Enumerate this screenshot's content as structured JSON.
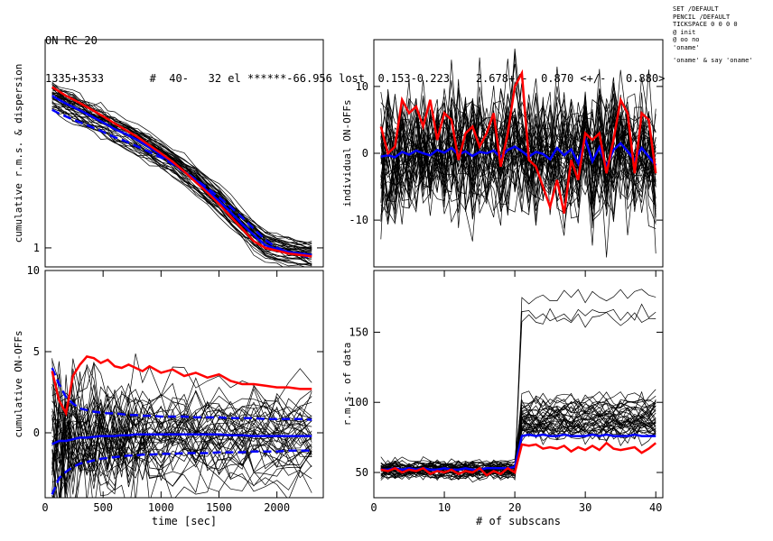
{
  "header": {
    "line1": "ON RC 20",
    "line2": "1335+3533       #  40-   32 el ******-66.956 lost  0.153-0.223    2.678+/-  0.870 <+/-   0.880>"
  },
  "side_notes": [
    "SET /DEFAULT",
    "PENCIL /DEFAULT",
    "TICKSPACE 0 0 0 0",
    "@ init",
    "@ oo no",
    "'oname'",
    "",
    "'oname' & say 'oname'"
  ],
  "colors": {
    "traces": "#000000",
    "highlight": "#ff0000",
    "mean": "#0000ff"
  },
  "chart_data": [
    {
      "id": "rms-dispersion",
      "type": "line",
      "ylabel": "cumulative r.m.s. & dispersion",
      "xlabel": "",
      "yscale": "log",
      "xlim": [
        0,
        2400
      ],
      "ylim": [
        0.87,
        4.6
      ],
      "yticks": [
        {
          "v": 1,
          "label": "1"
        }
      ],
      "x": [
        60,
        120,
        180,
        240,
        300,
        360,
        420,
        480,
        540,
        600,
        700,
        800,
        900,
        1000,
        1100,
        1200,
        1300,
        1400,
        1500,
        1600,
        1700,
        1800,
        1900,
        2000,
        2100,
        2200,
        2300
      ],
      "highlight_values": [
        3.25,
        3.15,
        3.05,
        2.97,
        2.89,
        2.81,
        2.73,
        2.65,
        2.57,
        2.49,
        2.37,
        2.25,
        2.12,
        2.0,
        1.88,
        1.75,
        1.62,
        1.5,
        1.38,
        1.26,
        1.15,
        1.05,
        1.0,
        0.98,
        0.96,
        0.95,
        0.94
      ],
      "mean_values": [
        3.05,
        2.96,
        2.88,
        2.81,
        2.74,
        2.67,
        2.6,
        2.53,
        2.46,
        2.39,
        2.3,
        2.2,
        2.09,
        1.98,
        1.87,
        1.75,
        1.64,
        1.52,
        1.41,
        1.3,
        1.19,
        1.1,
        1.02,
        0.99,
        0.97,
        0.96,
        0.95
      ],
      "dispersion_values": [
        2.75,
        2.68,
        2.62,
        2.56,
        2.51,
        2.46,
        2.41,
        2.36,
        2.3,
        2.25,
        2.18,
        2.1,
        2.02,
        1.94,
        1.85,
        1.75,
        1.65,
        1.55,
        1.45,
        1.35,
        1.25,
        1.15,
        1.06,
        1.0,
        0.97,
        0.95,
        0.93
      ],
      "n_traces": 40
    },
    {
      "id": "individual-on-offs",
      "type": "line",
      "ylabel": "individual ON-OFFs",
      "xlabel": "",
      "xlim": [
        0,
        41
      ],
      "ylim": [
        -17,
        17
      ],
      "yticks": [
        {
          "v": -10,
          "label": "-10"
        },
        {
          "v": 0,
          "label": "0"
        },
        {
          "v": 10,
          "label": "10"
        }
      ],
      "x": [
        1,
        2,
        3,
        4,
        5,
        6,
        7,
        8,
        9,
        10,
        11,
        12,
        13,
        14,
        15,
        16,
        17,
        18,
        19,
        20,
        21,
        22,
        23,
        24,
        25,
        26,
        27,
        28,
        29,
        30,
        31,
        32,
        33,
        34,
        35,
        36,
        37,
        38,
        39,
        40
      ],
      "highlight_values": [
        4,
        0,
        1,
        8,
        6,
        7,
        4,
        8,
        2,
        6,
        5,
        -1,
        3,
        4,
        1,
        3,
        6,
        -2,
        3,
        10,
        12,
        -1,
        -2,
        -5,
        -8,
        -4,
        -9,
        -1,
        -4,
        3,
        2,
        3,
        -3,
        2,
        8,
        6,
        -3,
        6,
        5,
        -3
      ],
      "mean_values": [
        -0.5,
        -0.3,
        -0.6,
        0.2,
        -0.2,
        0.4,
        0.0,
        -0.3,
        0.5,
        0.1,
        0.8,
        -0.2,
        0.3,
        -0.4,
        0.2,
        0.0,
        0.4,
        -0.6,
        0.5,
        1.0,
        0.3,
        -0.5,
        0.2,
        -0.1,
        -0.9,
        0.8,
        -0.3,
        0.6,
        -1.5,
        2.2,
        -1.2,
        0.9,
        -2.0,
        0.5,
        1.5,
        0.3,
        -1.0,
        0.8,
        -0.5,
        -1.8
      ],
      "n_traces": 40
    },
    {
      "id": "cumulative-on-offs",
      "type": "line",
      "ylabel": "cumulative ON-OFFs",
      "xlabel": "time [sec]",
      "xlim": [
        0,
        2400
      ],
      "ylim": [
        -4,
        10
      ],
      "xticks": [
        {
          "v": 0,
          "label": "0"
        },
        {
          "v": 500,
          "label": "500"
        },
        {
          "v": 1000,
          "label": "1000"
        },
        {
          "v": 1500,
          "label": "1500"
        },
        {
          "v": 2000,
          "label": "2000"
        }
      ],
      "yticks": [
        {
          "v": 0,
          "label": "0"
        },
        {
          "v": 5,
          "label": "5"
        },
        {
          "v": 10,
          "label": "10"
        }
      ],
      "x": [
        60,
        120,
        180,
        240,
        300,
        360,
        420,
        480,
        540,
        600,
        660,
        720,
        780,
        840,
        900,
        1000,
        1100,
        1200,
        1300,
        1400,
        1500,
        1600,
        1700,
        1800,
        1900,
        2000,
        2100,
        2200,
        2300
      ],
      "highlight_values": [
        3.8,
        2.0,
        1.2,
        3.5,
        4.2,
        4.7,
        4.6,
        4.3,
        4.5,
        4.1,
        4.0,
        4.2,
        4.0,
        3.8,
        4.1,
        3.7,
        3.9,
        3.5,
        3.7,
        3.4,
        3.6,
        3.2,
        3.0,
        3.0,
        2.9,
        2.8,
        2.8,
        2.7,
        2.7
      ],
      "mean_values": [
        -0.7,
        -0.5,
        -0.5,
        -0.4,
        -0.3,
        -0.3,
        -0.25,
        -0.2,
        -0.2,
        -0.2,
        -0.15,
        -0.15,
        -0.1,
        -0.1,
        -0.1,
        -0.1,
        -0.1,
        -0.1,
        -0.1,
        -0.1,
        -0.1,
        -0.15,
        -0.15,
        -0.2,
        -0.2,
        -0.2,
        -0.2,
        -0.2,
        -0.2
      ],
      "upper_values": [
        4.0,
        3.0,
        2.2,
        1.8,
        1.5,
        1.4,
        1.3,
        1.25,
        1.2,
        1.2,
        1.15,
        1.1,
        1.1,
        1.05,
        1.05,
        1.0,
        1.0,
        1.0,
        0.95,
        0.95,
        0.95,
        0.9,
        0.9,
        0.9,
        0.85,
        0.85,
        0.85,
        0.85,
        0.8
      ],
      "lower_values": [
        -3.8,
        -2.8,
        -2.4,
        -2.1,
        -1.9,
        -1.8,
        -1.7,
        -1.6,
        -1.55,
        -1.5,
        -1.45,
        -1.4,
        -1.4,
        -1.35,
        -1.35,
        -1.3,
        -1.3,
        -1.25,
        -1.25,
        -1.25,
        -1.2,
        -1.2,
        -1.2,
        -1.15,
        -1.15,
        -1.15,
        -1.1,
        -1.1,
        -1.1
      ],
      "n_traces": 40
    },
    {
      "id": "rms-of-data",
      "type": "line",
      "ylabel": "r.m.s. of data",
      "xlabel": "# of subscans",
      "xlim": [
        0,
        41
      ],
      "ylim": [
        32,
        194
      ],
      "xticks": [
        {
          "v": 0,
          "label": "0"
        },
        {
          "v": 10,
          "label": "10"
        },
        {
          "v": 20,
          "label": "20"
        },
        {
          "v": 30,
          "label": "30"
        },
        {
          "v": 40,
          "label": "40"
        }
      ],
      "yticks": [
        {
          "v": 50,
          "label": "50"
        },
        {
          "v": 100,
          "label": "100"
        },
        {
          "v": 150,
          "label": "150"
        }
      ],
      "x": [
        1,
        2,
        3,
        4,
        5,
        6,
        7,
        8,
        9,
        10,
        11,
        12,
        13,
        14,
        15,
        16,
        17,
        18,
        19,
        20,
        21,
        22,
        23,
        24,
        25,
        26,
        27,
        28,
        29,
        30,
        31,
        32,
        33,
        34,
        35,
        36,
        37,
        38,
        39,
        40
      ],
      "highlight_values": [
        52,
        51,
        53,
        50,
        52,
        51,
        53,
        49,
        51,
        50,
        52,
        49,
        51,
        50,
        53,
        48,
        51,
        49,
        53,
        50,
        70,
        69,
        70,
        67,
        68,
        67,
        69,
        65,
        68,
        66,
        69,
        66,
        71,
        67,
        66,
        67,
        68,
        64,
        67,
        71
      ],
      "mean_values": [
        52,
        52,
        53,
        52,
        53,
        52,
        53,
        52,
        52,
        53,
        52,
        52,
        53,
        52,
        52,
        53,
        53,
        53,
        53,
        54,
        76,
        77,
        76,
        77,
        76,
        76,
        77,
        76,
        76,
        76,
        77,
        76,
        77,
        76,
        76,
        76,
        77,
        76,
        76,
        76
      ],
      "n_traces": 40
    }
  ]
}
